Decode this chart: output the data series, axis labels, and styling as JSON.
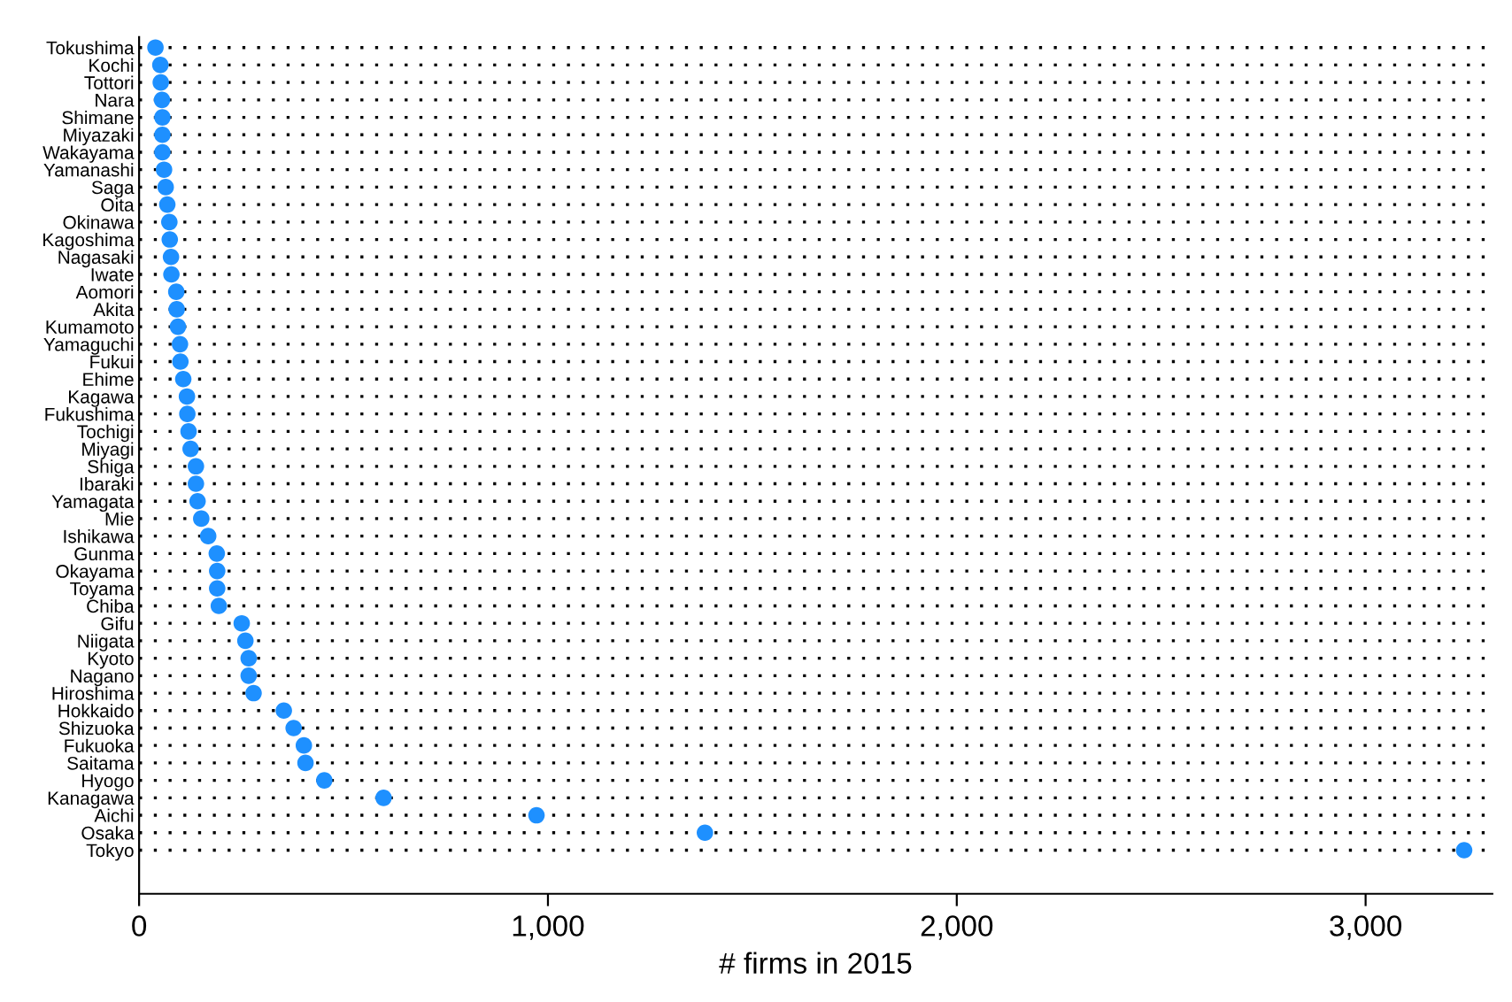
{
  "chart_data": {
    "type": "scatter",
    "orientation": "horizontal",
    "xlabel": "# firms in 2015",
    "categories": [
      "Tokushima",
      "Kochi",
      "Tottori",
      "Nara",
      "Shimane",
      "Miyazaki",
      "Wakayama",
      "Yamanashi",
      "Saga",
      "Oita",
      "Okinawa",
      "Kagoshima",
      "Nagasaki",
      "Iwate",
      "Aomori",
      "Akita",
      "Kumamoto",
      "Yamaguchi",
      "Fukui",
      "Ehime",
      "Kagawa",
      "Fukushima",
      "Tochigi",
      "Miyagi",
      "Shiga",
      "Ibaraki",
      "Yamagata",
      "Mie",
      "Ishikawa",
      "Gunma",
      "Okayama",
      "Toyama",
      "Chiba",
      "Gifu",
      "Niigata",
      "Kyoto",
      "Nagano",
      "Hiroshima",
      "Hokkaido",
      "Shizuoka",
      "Fukuoka",
      "Saitama",
      "Hyogo",
      "Kanagawa",
      "Aichi",
      "Osaka",
      "Tokyo"
    ],
    "values": [
      40,
      52,
      53,
      56,
      57,
      57,
      57,
      61,
      65,
      69,
      74,
      75,
      78,
      79,
      91,
      92,
      95,
      100,
      101,
      108,
      117,
      118,
      121,
      126,
      139,
      139,
      143,
      152,
      169,
      190,
      191,
      191,
      195,
      251,
      260,
      268,
      268,
      280,
      354,
      378,
      403,
      407,
      453,
      598,
      972,
      1384,
      3241
    ],
    "color": "#1e90ff",
    "marker": "circle",
    "xlim": [
      0,
      3310
    ],
    "xticks": [
      0,
      {
        "value": 1000,
        "label": "1,000"
      },
      {
        "value": 2000,
        "label": "2,000"
      },
      {
        "value": 3000,
        "label": "3,000"
      }
    ],
    "grid": "y",
    "line_style": "dotted"
  }
}
